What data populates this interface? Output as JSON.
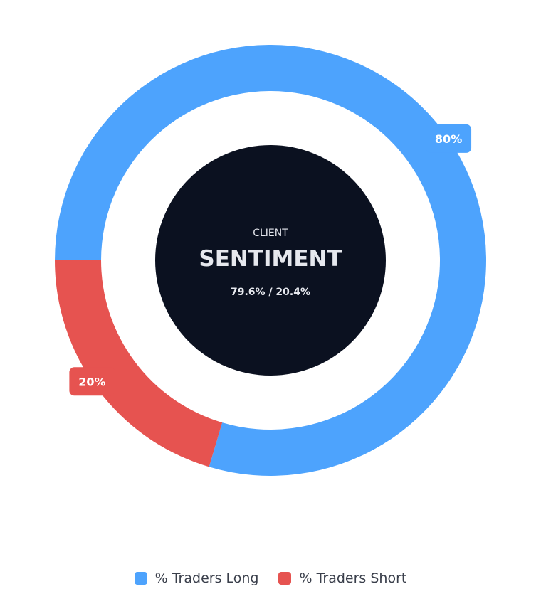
{
  "colors": {
    "long": "#4da3fd",
    "short": "#e65350",
    "center_bg": "#0b1120",
    "center_text": "#e6e8ee",
    "label_text": "#ffffff"
  },
  "center": {
    "kicker": "CLIENT",
    "title": "SENTIMENT",
    "ratio": "79.6% / 20.4%"
  },
  "chart_data": {
    "type": "pie",
    "variant": "doughnut",
    "series": [
      {
        "name": "% Traders Long",
        "value": 79.6,
        "label": "80%",
        "color": "#4da3fd"
      },
      {
        "name": "% Traders Short",
        "value": 20.4,
        "label": "20%",
        "color": "#e65350"
      }
    ],
    "legend_position": "bottom"
  },
  "legend": {
    "items": [
      {
        "label": "% Traders Long"
      },
      {
        "label": "% Traders Short"
      }
    ]
  }
}
